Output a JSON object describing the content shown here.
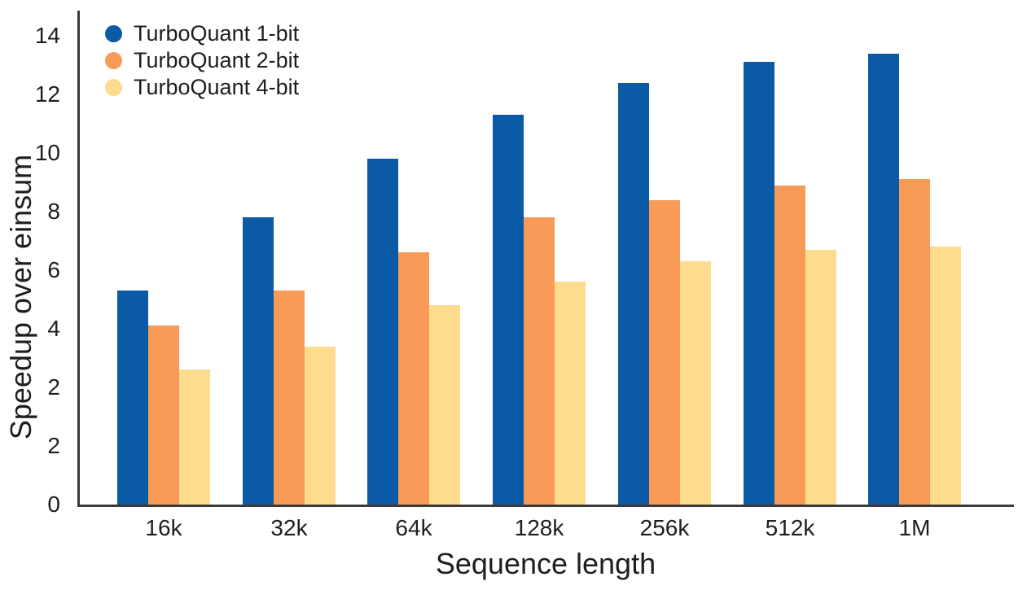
{
  "figure": {
    "background": "#ffffff",
    "text_color": "#1e1e1e",
    "axis_color": "#3a3a3a"
  },
  "chart_data": {
    "type": "bar",
    "title": "",
    "xlabel": "Sequence length",
    "ylabel": "Speedup over einsum",
    "categories": [
      "16k",
      "32k",
      "64k",
      "128k",
      "256k",
      "512k",
      "1M"
    ],
    "series": [
      {
        "name": "TurboQuant 1-bit",
        "color": "#0b5aa5",
        "values": [
          5.3,
          7.8,
          9.8,
          11.3,
          12.4,
          13.1,
          13.4
        ]
      },
      {
        "name": "TurboQuant 2-bit",
        "color": "#f79b57",
        "values": [
          4.1,
          5.3,
          6.6,
          7.8,
          8.4,
          8.9,
          9.1
        ]
      },
      {
        "name": "TurboQuant 4-bit",
        "color": "#fedc8e",
        "values": [
          2.6,
          3.4,
          4.8,
          5.6,
          6.3,
          6.7,
          6.8
        ]
      }
    ],
    "y_ticks_bottom_to_top": [
      "0",
      "2",
      "2",
      "4",
      "6",
      "8",
      "10",
      "12",
      "14"
    ],
    "y_tick_note": "tick labels as printed in figure; '2' appears twice, ticks evenly spaced",
    "grid": false,
    "legend_position": "top-left"
  }
}
